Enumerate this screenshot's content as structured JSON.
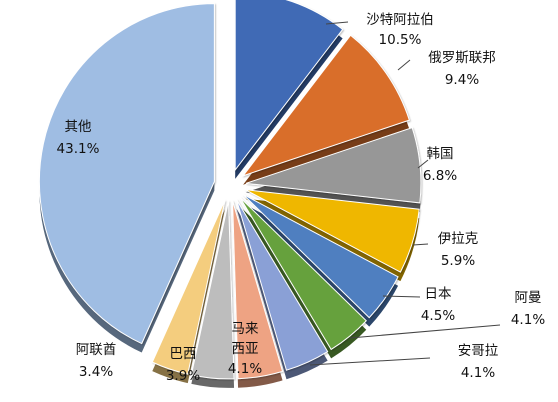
{
  "chart_data": {
    "type": "pie",
    "exploded": true,
    "shading": "3d-extruded",
    "slices": [
      {
        "label": "沙特阿拉伯",
        "value": 10.5,
        "value_text": "10.5%",
        "color": "#3f6bb5"
      },
      {
        "label": "俄罗斯联邦",
        "value": 9.4,
        "value_text": "9.4%",
        "color": "#d96e2c"
      },
      {
        "label": "韩国",
        "value": 6.8,
        "value_text": "6.8%",
        "color": "#979797"
      },
      {
        "label": "伊拉克",
        "value": 5.9,
        "value_text": "5.9%",
        "color": "#efb700"
      },
      {
        "label": "日本",
        "value": 4.5,
        "value_text": "4.5%",
        "color": "#4f7fc0"
      },
      {
        "label": "阿曼",
        "value": 4.1,
        "value_text": "4.1%",
        "color": "#66a13d"
      },
      {
        "label": "安哥拉",
        "value": 4.1,
        "value_text": "4.1%",
        "color": "#8aa0d6"
      },
      {
        "label": "马来西亚",
        "value": 4.1,
        "value_text": "4.1%",
        "color": "#eea383"
      },
      {
        "label": "巴西",
        "value": 3.9,
        "value_text": "3.9%",
        "color": "#bdbdbd"
      },
      {
        "label": "阿联酋",
        "value": 3.4,
        "value_text": "3.4%",
        "color": "#f4cd7e"
      },
      {
        "label": "其他",
        "value": 43.1,
        "value_text": "43.1%",
        "color": "#9fbde3"
      }
    ]
  }
}
